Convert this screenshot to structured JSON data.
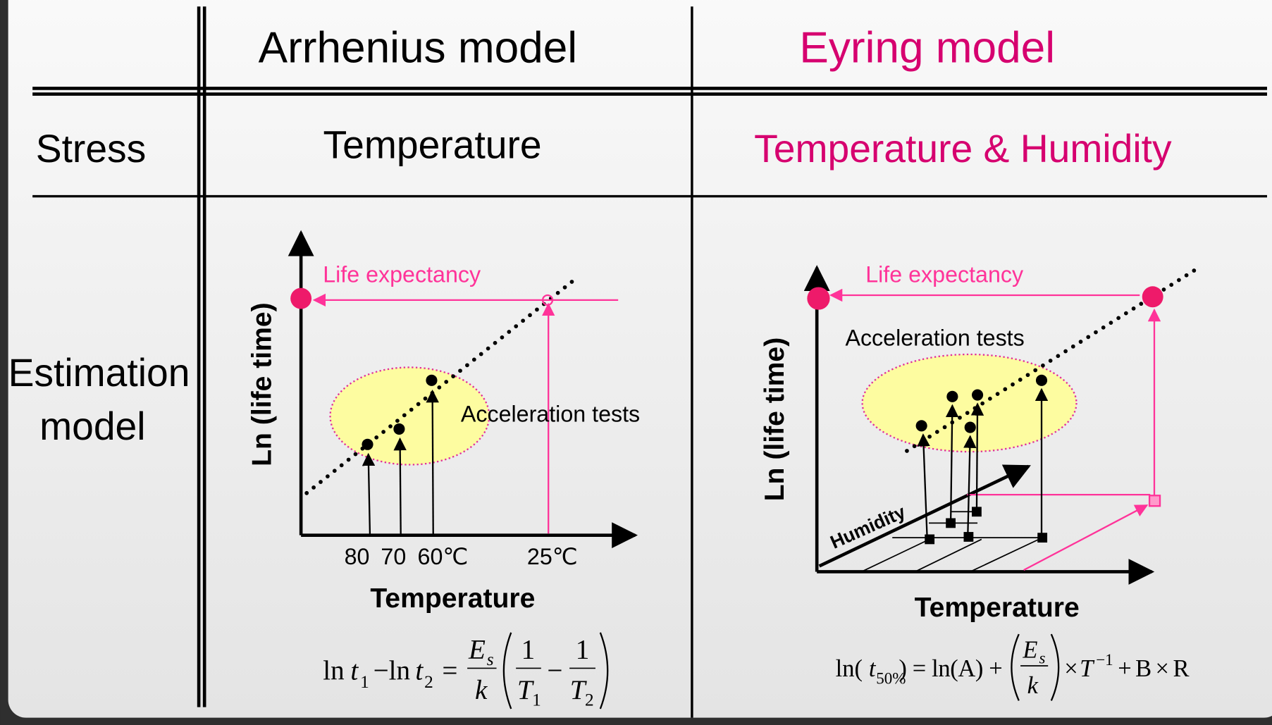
{
  "table": {
    "header": [
      "Arrhenius model",
      "Eyring model"
    ],
    "rows": [
      {
        "label": "Stress",
        "cells": [
          "Temperature",
          "Temperature & Humidity"
        ]
      },
      {
        "label_lines": [
          "Estimation",
          "model"
        ]
      }
    ]
  },
  "diagrams": {
    "arrhenius": {
      "y_axis": "Ln (life time)",
      "x_axis": "Temperature",
      "life_expectancy": "Life expectancy",
      "acceleration_tests": "Acceleration tests",
      "temperatures": [
        "80",
        "70",
        "60℃",
        "25℃"
      ],
      "equation": [
        "ln",
        "t",
        "1",
        "−ln",
        "t",
        "2",
        "=",
        "E",
        "s",
        "k",
        "1",
        "T",
        "1",
        "−",
        "1",
        "T",
        "2"
      ]
    },
    "eyring": {
      "y_axis": "Ln (life time)",
      "x_axis": "Temperature",
      "humidity_axis": "Humidity",
      "life_expectancy": "Life expectancy",
      "acceleration_tests": "Acceleration tests",
      "equation": [
        "ln(",
        "t",
        "50%",
        ") = ln(A) +",
        "E",
        "s",
        "k",
        "×",
        "T",
        "−1",
        "+ B × R"
      ]
    }
  }
}
